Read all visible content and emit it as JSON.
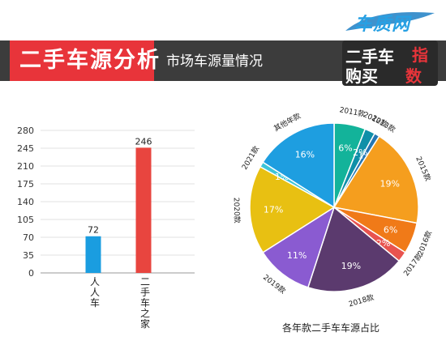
{
  "header": {
    "title": "二手车源分析",
    "subtitle": "市场车源量情况",
    "brand_name": "车质网",
    "brand_url": "12365auto.com",
    "brand_tag_line1": "二手车",
    "brand_tag_red1": "指",
    "brand_tag_line2": "购买",
    "brand_tag_red2": "数"
  },
  "colors": {
    "header_bg": "#3c3c3c",
    "title_bg": "#e8343a",
    "bar_blue": "#1a9de0",
    "bar_red": "#e8453f"
  },
  "chart_data": [
    {
      "type": "bar",
      "categories": [
        "人人车",
        "二手车之家"
      ],
      "values": [
        72,
        246
      ],
      "colors": [
        "#1a9de0",
        "#e8453f"
      ],
      "ylim": [
        0,
        280
      ],
      "yticks": [
        0,
        35,
        70,
        105,
        140,
        175,
        210,
        245,
        280
      ],
      "grid": true
    },
    {
      "type": "pie",
      "title": "各年款二手车车源占比",
      "slices": [
        {
          "label": "2011款",
          "value": 6,
          "color": "#13b39a"
        },
        {
          "label": "2012款",
          "value": 2,
          "color": "#0f8fa8"
        },
        {
          "label": "2013款",
          "value": 1,
          "color": "#2476b3"
        },
        {
          "label": "2015款",
          "value": 19,
          "color": "#f59e1e"
        },
        {
          "label": "2016款",
          "value": 6,
          "color": "#f07a18"
        },
        {
          "label": "2017款",
          "value": 2,
          "color": "#e8534f"
        },
        {
          "label": "2018款",
          "value": 19,
          "color": "#5b3a6e"
        },
        {
          "label": "2019款",
          "value": 11,
          "color": "#8a5bd1"
        },
        {
          "label": "2020款",
          "value": 17,
          "color": "#e8c012"
        },
        {
          "label": "2021款",
          "value": 1,
          "color": "#3ec5d8"
        },
        {
          "label": "其他年款",
          "value": 16,
          "color": "#1e9ee0"
        }
      ]
    }
  ]
}
